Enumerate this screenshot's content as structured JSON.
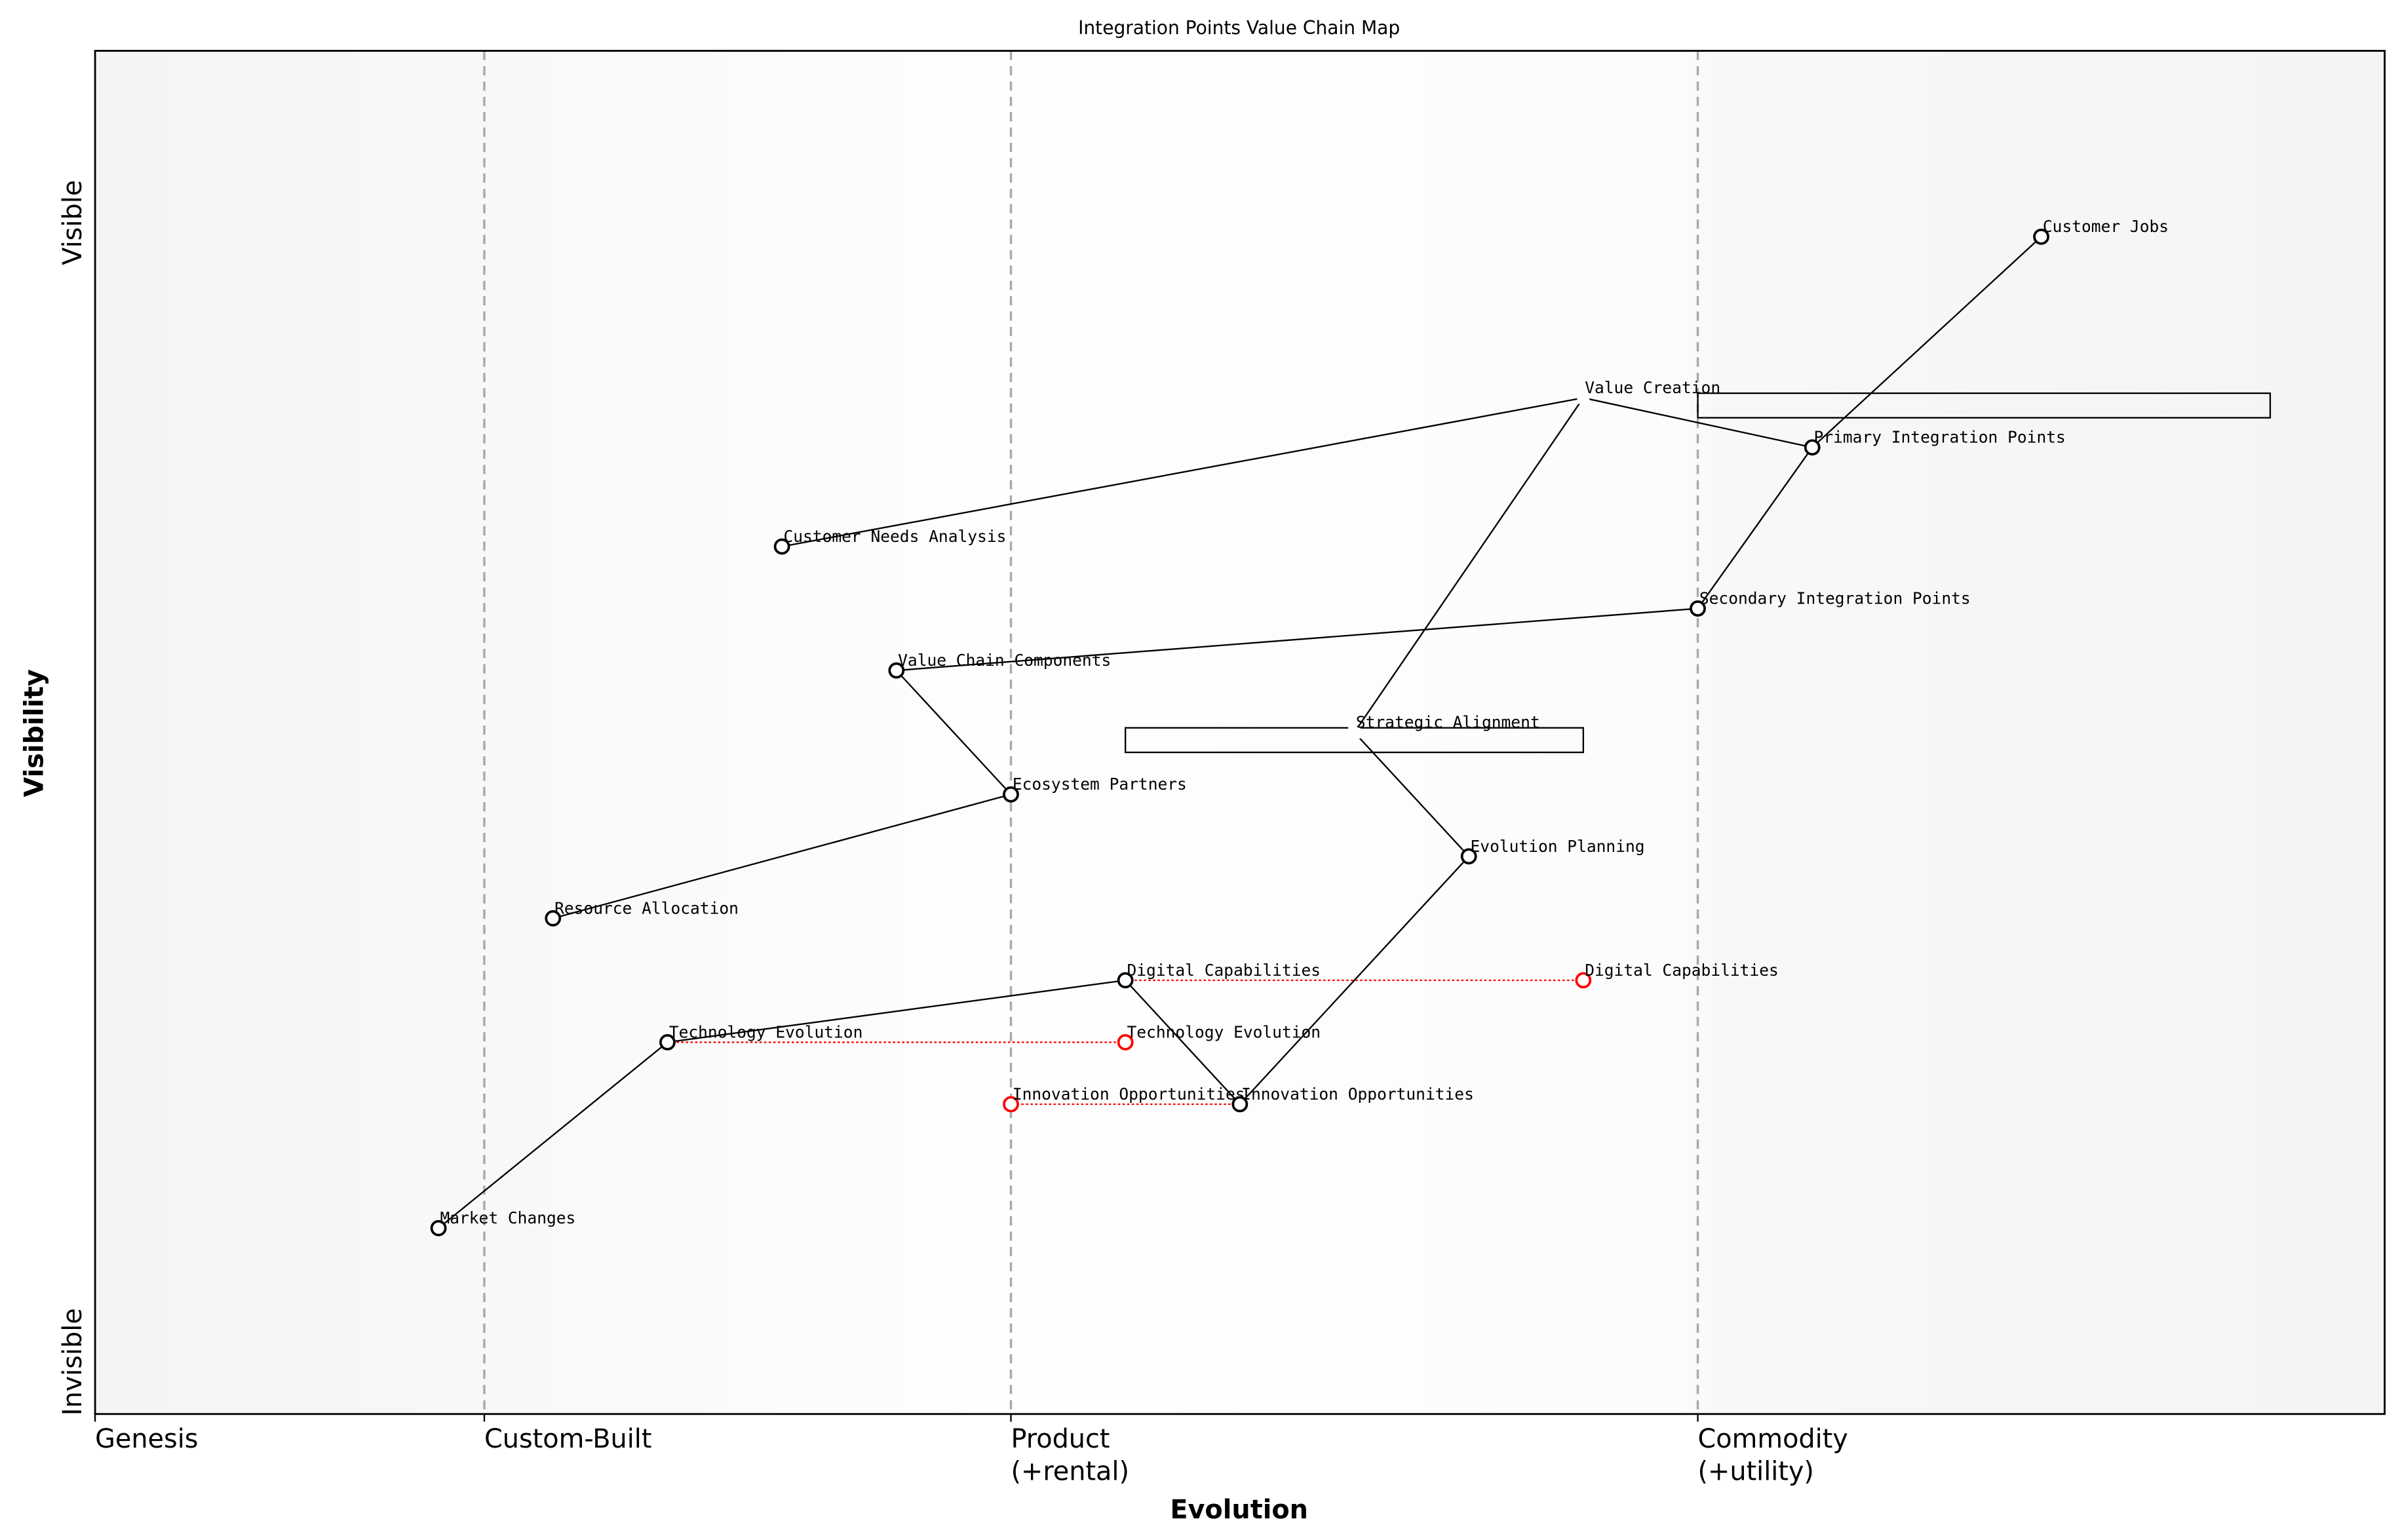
{
  "chart_data": {
    "type": "scatter",
    "title": "Integration Points Value Chain Map",
    "xlabel": "Evolution",
    "ylabel": "Visibility",
    "xlim": [
      0,
      1
    ],
    "ylim": [
      0,
      1.1
    ],
    "grid": false,
    "x_stage_ticks": [
      {
        "value": 0,
        "lines": [
          "Genesis"
        ]
      },
      {
        "value": 0.17,
        "lines": [
          "Custom-Built"
        ]
      },
      {
        "value": 0.4,
        "lines": [
          "Product",
          "(+rental)"
        ]
      },
      {
        "value": 0.7,
        "lines": [
          "Commodity",
          "(+utility)"
        ]
      }
    ],
    "y_end_labels": {
      "top": "Visible",
      "bottom": "Invisible"
    },
    "components": [
      {
        "name": "Customer Jobs",
        "evolution": 0.85,
        "visibility": 0.95,
        "marker": true
      },
      {
        "name": "Value Creation",
        "evolution": 0.65,
        "visibility": 0.82,
        "marker": false
      },
      {
        "name": "Primary Integration Points",
        "evolution": 0.75,
        "visibility": 0.78,
        "marker": true
      },
      {
        "name": "Customer Needs Analysis",
        "evolution": 0.3,
        "visibility": 0.7,
        "marker": true
      },
      {
        "name": "Secondary Integration Points",
        "evolution": 0.7,
        "visibility": 0.65,
        "marker": true
      },
      {
        "name": "Value Chain Components",
        "evolution": 0.35,
        "visibility": 0.6,
        "marker": true
      },
      {
        "name": "Strategic Alignment",
        "evolution": 0.55,
        "visibility": 0.55,
        "marker": false
      },
      {
        "name": "Ecosystem Partners",
        "evolution": 0.4,
        "visibility": 0.5,
        "marker": true
      },
      {
        "name": "Evolution Planning",
        "evolution": 0.6,
        "visibility": 0.45,
        "marker": true
      },
      {
        "name": "Resource Allocation",
        "evolution": 0.2,
        "visibility": 0.4,
        "marker": true
      },
      {
        "name": "Digital Capabilities",
        "evolution": 0.45,
        "visibility": 0.35,
        "marker": true
      },
      {
        "name": "Technology Evolution",
        "evolution": 0.25,
        "visibility": 0.3,
        "marker": true
      },
      {
        "name": "Innovation Opportunities",
        "evolution": 0.5,
        "visibility": 0.25,
        "marker": true
      },
      {
        "name": "Market Changes",
        "evolution": 0.15,
        "visibility": 0.15,
        "marker": true
      }
    ],
    "links": [
      [
        "Customer Jobs",
        "Primary Integration Points"
      ],
      [
        "Primary Integration Points",
        "Value Creation"
      ],
      [
        "Value Creation",
        "Customer Needs Analysis"
      ],
      [
        "Value Creation",
        "Strategic Alignment"
      ],
      [
        "Primary Integration Points",
        "Secondary Integration Points"
      ],
      [
        "Secondary Integration Points",
        "Value Chain Components"
      ],
      [
        "Value Chain Components",
        "Ecosystem Partners"
      ],
      [
        "Ecosystem Partners",
        "Resource Allocation"
      ],
      [
        "Strategic Alignment",
        "Evolution Planning"
      ],
      [
        "Evolution Planning",
        "Innovation Opportunities"
      ],
      [
        "Innovation Opportunities",
        "Digital Capabilities"
      ],
      [
        "Digital Capabilities",
        "Technology Evolution"
      ],
      [
        "Technology Evolution",
        "Market Changes"
      ]
    ],
    "evolutions": [
      {
        "name": "Digital Capabilities",
        "from": 0.45,
        "to": 0.65,
        "visibility": 0.35
      },
      {
        "name": "Technology Evolution",
        "from": 0.25,
        "to": 0.45,
        "visibility": 0.3
      },
      {
        "name": "Innovation Opportunities",
        "from": 0.5,
        "to": 0.4,
        "visibility": 0.25
      }
    ],
    "pipelines": [
      {
        "component": "Value Creation",
        "start": 0.7,
        "end": 0.95
      },
      {
        "component": "Strategic Alignment",
        "start": 0.45,
        "end": 0.65
      }
    ],
    "colors": {
      "component": "#000000",
      "evolved": "#ff0000",
      "stage_line": "#aaaaaa",
      "genesis_bg": "#f4f4f4",
      "commodity_bg": "#f5f5f5"
    }
  }
}
